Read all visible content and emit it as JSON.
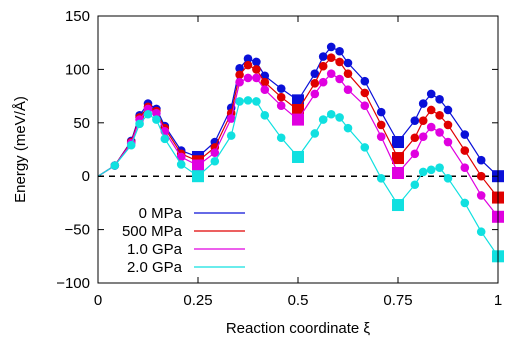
{
  "chart_data": {
    "type": "line",
    "title": "",
    "xlabel": "Reaction coordinate ξ",
    "ylabel": "Energy (meV/Å)",
    "xlim": [
      0,
      1
    ],
    "ylim": [
      -100,
      150
    ],
    "x_ticks": [
      0,
      0.25,
      0.5,
      0.75,
      1
    ],
    "x_tick_labels": [
      "0",
      "0.25",
      "0.5",
      "0.75",
      "1"
    ],
    "y_ticks": [
      -100,
      -50,
      0,
      50,
      100,
      150
    ],
    "y_tick_labels": [
      "−100",
      "−50",
      "0",
      "50",
      "100",
      "150"
    ],
    "zero_line": {
      "y": 0,
      "style": "dashed",
      "color": "#000000"
    },
    "legend": {
      "placement": "bottom-left"
    },
    "grid": false,
    "series": [
      {
        "name": "0 MPa",
        "color": "#0a10d8",
        "x": [
          0,
          0.042,
          0.083,
          0.104,
          0.125,
          0.146,
          0.167,
          0.208,
          0.25,
          0.292,
          0.333,
          0.354,
          0.375,
          0.396,
          0.417,
          0.458,
          0.5,
          0.542,
          0.563,
          0.583,
          0.604,
          0.625,
          0.667,
          0.708,
          0.75,
          0.792,
          0.813,
          0.833,
          0.854,
          0.875,
          0.917,
          0.958,
          1
        ],
        "y": [
          0,
          10,
          33,
          57,
          68,
          63,
          47,
          24,
          18,
          32,
          64,
          101,
          110,
          107,
          94,
          82,
          71,
          96,
          112,
          121,
          117,
          106,
          89,
          60,
          32,
          52,
          68,
          77,
          72,
          62,
          39,
          15,
          0
        ],
        "markers": [
          {
            "x": 0.042,
            "y": 10
          },
          {
            "x": 0.083,
            "y": 33
          },
          {
            "x": 0.104,
            "y": 57
          },
          {
            "x": 0.125,
            "y": 68
          },
          {
            "x": 0.146,
            "y": 63
          },
          {
            "x": 0.167,
            "y": 47
          },
          {
            "x": 0.208,
            "y": 24
          },
          {
            "x": 0.25,
            "y": 18
          },
          {
            "x": 0.292,
            "y": 32
          },
          {
            "x": 0.333,
            "y": 64
          },
          {
            "x": 0.354,
            "y": 101
          },
          {
            "x": 0.375,
            "y": 110
          },
          {
            "x": 0.396,
            "y": 107
          },
          {
            "x": 0.417,
            "y": 94
          },
          {
            "x": 0.458,
            "y": 82
          },
          {
            "x": 0.5,
            "y": 71
          },
          {
            "x": 0.542,
            "y": 96
          },
          {
            "x": 0.563,
            "y": 112
          },
          {
            "x": 0.583,
            "y": 121
          },
          {
            "x": 0.604,
            "y": 117
          },
          {
            "x": 0.625,
            "y": 106
          },
          {
            "x": 0.667,
            "y": 89
          },
          {
            "x": 0.708,
            "y": 60
          },
          {
            "x": 0.75,
            "y": 32
          },
          {
            "x": 0.792,
            "y": 52
          },
          {
            "x": 0.813,
            "y": 68
          },
          {
            "x": 0.833,
            "y": 77
          },
          {
            "x": 0.854,
            "y": 72
          },
          {
            "x": 0.875,
            "y": 62
          },
          {
            "x": 0.917,
            "y": 39
          },
          {
            "x": 0.958,
            "y": 15
          },
          {
            "x": 1,
            "y": 0
          }
        ],
        "square_markers_x": [
          0.25,
          0.5,
          0.75,
          1
        ]
      },
      {
        "name": "500 MPa",
        "color": "#e00000",
        "x": [
          0,
          0.042,
          0.083,
          0.104,
          0.125,
          0.146,
          0.167,
          0.208,
          0.25,
          0.292,
          0.333,
          0.354,
          0.375,
          0.396,
          0.417,
          0.458,
          0.5,
          0.542,
          0.563,
          0.583,
          0.604,
          0.625,
          0.667,
          0.708,
          0.75,
          0.792,
          0.813,
          0.833,
          0.854,
          0.875,
          0.917,
          0.958,
          1
        ],
        "y": [
          0,
          10,
          32,
          55,
          65,
          61,
          45,
          21,
          14,
          27,
          59,
          95,
          104,
          100,
          88,
          74,
          62,
          87,
          103,
          111,
          107,
          96,
          78,
          48,
          17,
          36,
          52,
          62,
          57,
          48,
          24,
          0,
          -20
        ],
        "markers": [
          {
            "x": 0.042,
            "y": 10
          },
          {
            "x": 0.083,
            "y": 32
          },
          {
            "x": 0.104,
            "y": 55
          },
          {
            "x": 0.125,
            "y": 65
          },
          {
            "x": 0.146,
            "y": 61
          },
          {
            "x": 0.167,
            "y": 45
          },
          {
            "x": 0.208,
            "y": 21
          },
          {
            "x": 0.25,
            "y": 14
          },
          {
            "x": 0.292,
            "y": 27
          },
          {
            "x": 0.333,
            "y": 59
          },
          {
            "x": 0.354,
            "y": 95
          },
          {
            "x": 0.375,
            "y": 104
          },
          {
            "x": 0.396,
            "y": 100
          },
          {
            "x": 0.417,
            "y": 88
          },
          {
            "x": 0.458,
            "y": 74
          },
          {
            "x": 0.5,
            "y": 62
          },
          {
            "x": 0.542,
            "y": 87
          },
          {
            "x": 0.563,
            "y": 103
          },
          {
            "x": 0.583,
            "y": 111
          },
          {
            "x": 0.604,
            "y": 107
          },
          {
            "x": 0.625,
            "y": 96
          },
          {
            "x": 0.667,
            "y": 78
          },
          {
            "x": 0.708,
            "y": 48
          },
          {
            "x": 0.75,
            "y": 17
          },
          {
            "x": 0.792,
            "y": 36
          },
          {
            "x": 0.813,
            "y": 52
          },
          {
            "x": 0.833,
            "y": 62
          },
          {
            "x": 0.854,
            "y": 57
          },
          {
            "x": 0.875,
            "y": 48
          },
          {
            "x": 0.917,
            "y": 24
          },
          {
            "x": 0.958,
            "y": 0
          },
          {
            "x": 1,
            "y": -20
          }
        ],
        "square_markers_x": [
          0.25,
          0.5,
          0.75,
          1
        ]
      },
      {
        "name": "1.0 GPa",
        "color": "#e000e0",
        "x": [
          0,
          0.042,
          0.083,
          0.104,
          0.125,
          0.146,
          0.167,
          0.208,
          0.25,
          0.292,
          0.333,
          0.354,
          0.375,
          0.396,
          0.417,
          0.458,
          0.5,
          0.542,
          0.563,
          0.583,
          0.604,
          0.625,
          0.667,
          0.708,
          0.75,
          0.792,
          0.813,
          0.833,
          0.854,
          0.875,
          0.917,
          0.958,
          1
        ],
        "y": [
          0,
          10,
          31,
          53,
          63,
          59,
          42,
          18,
          10,
          22,
          54,
          88,
          92,
          92,
          81,
          66,
          53,
          77,
          88,
          96,
          91,
          81,
          66,
          37,
          3,
          21,
          37,
          46,
          41,
          32,
          8,
          -18,
          -38
        ],
        "markers": [
          {
            "x": 0.042,
            "y": 10
          },
          {
            "x": 0.083,
            "y": 31
          },
          {
            "x": 0.104,
            "y": 53
          },
          {
            "x": 0.125,
            "y": 63
          },
          {
            "x": 0.146,
            "y": 59
          },
          {
            "x": 0.167,
            "y": 42
          },
          {
            "x": 0.208,
            "y": 18
          },
          {
            "x": 0.25,
            "y": 10
          },
          {
            "x": 0.292,
            "y": 22
          },
          {
            "x": 0.333,
            "y": 54
          },
          {
            "x": 0.354,
            "y": 88
          },
          {
            "x": 0.375,
            "y": 92
          },
          {
            "x": 0.396,
            "y": 92
          },
          {
            "x": 0.417,
            "y": 81
          },
          {
            "x": 0.458,
            "y": 66
          },
          {
            "x": 0.5,
            "y": 53
          },
          {
            "x": 0.542,
            "y": 77
          },
          {
            "x": 0.563,
            "y": 88
          },
          {
            "x": 0.583,
            "y": 96
          },
          {
            "x": 0.604,
            "y": 91
          },
          {
            "x": 0.625,
            "y": 81
          },
          {
            "x": 0.667,
            "y": 66
          },
          {
            "x": 0.708,
            "y": 37
          },
          {
            "x": 0.75,
            "y": 3
          },
          {
            "x": 0.792,
            "y": 21
          },
          {
            "x": 0.813,
            "y": 37
          },
          {
            "x": 0.833,
            "y": 46
          },
          {
            "x": 0.854,
            "y": 41
          },
          {
            "x": 0.875,
            "y": 32
          },
          {
            "x": 0.917,
            "y": 8
          },
          {
            "x": 0.958,
            "y": -18
          },
          {
            "x": 1,
            "y": -38
          }
        ],
        "square_markers_x": [
          0.25,
          0.5,
          0.75,
          1
        ]
      },
      {
        "name": "2.0 GPa",
        "color": "#10e0e0",
        "x": [
          0,
          0.042,
          0.083,
          0.104,
          0.125,
          0.146,
          0.167,
          0.208,
          0.25,
          0.292,
          0.333,
          0.354,
          0.375,
          0.396,
          0.417,
          0.458,
          0.5,
          0.542,
          0.563,
          0.583,
          0.604,
          0.625,
          0.667,
          0.708,
          0.75,
          0.792,
          0.813,
          0.833,
          0.854,
          0.875,
          0.917,
          0.958,
          1
        ],
        "y": [
          0,
          10,
          29,
          49,
          58,
          53,
          35,
          11,
          0,
          14,
          38,
          70,
          71,
          70,
          57,
          36,
          18,
          40,
          53,
          58,
          55,
          45,
          27,
          -2,
          -27,
          -8,
          4,
          6,
          8,
          -2,
          -25,
          -52,
          -75
        ],
        "markers": [
          {
            "x": 0.042,
            "y": 10
          },
          {
            "x": 0.083,
            "y": 29
          },
          {
            "x": 0.104,
            "y": 49
          },
          {
            "x": 0.125,
            "y": 58
          },
          {
            "x": 0.146,
            "y": 53
          },
          {
            "x": 0.167,
            "y": 35
          },
          {
            "x": 0.208,
            "y": 11
          },
          {
            "x": 0.25,
            "y": 0
          },
          {
            "x": 0.292,
            "y": 14
          },
          {
            "x": 0.333,
            "y": 38
          },
          {
            "x": 0.354,
            "y": 70
          },
          {
            "x": 0.375,
            "y": 71
          },
          {
            "x": 0.396,
            "y": 70
          },
          {
            "x": 0.417,
            "y": 57
          },
          {
            "x": 0.458,
            "y": 36
          },
          {
            "x": 0.5,
            "y": 18
          },
          {
            "x": 0.542,
            "y": 40
          },
          {
            "x": 0.563,
            "y": 53
          },
          {
            "x": 0.583,
            "y": 58
          },
          {
            "x": 0.604,
            "y": 55
          },
          {
            "x": 0.625,
            "y": 45
          },
          {
            "x": 0.667,
            "y": 27
          },
          {
            "x": 0.708,
            "y": -2
          },
          {
            "x": 0.75,
            "y": -27
          },
          {
            "x": 0.792,
            "y": -8
          },
          {
            "x": 0.813,
            "y": 4
          },
          {
            "x": 0.833,
            "y": 6
          },
          {
            "x": 0.854,
            "y": 8
          },
          {
            "x": 0.875,
            "y": -2
          },
          {
            "x": 0.917,
            "y": -25
          },
          {
            "x": 0.958,
            "y": -52
          },
          {
            "x": 1,
            "y": -75
          }
        ],
        "square_markers_x": [
          0.25,
          0.5,
          0.75,
          1
        ]
      }
    ]
  }
}
